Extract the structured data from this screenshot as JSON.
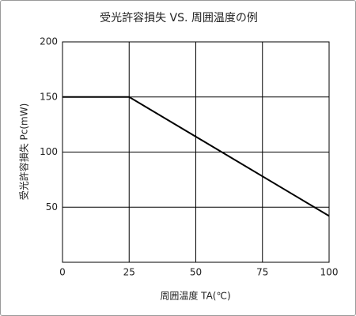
{
  "chart_data": {
    "type": "line",
    "title": "受光許容損失 VS. 周囲温度の例",
    "x_label": "周囲温度 TA(℃)",
    "y_label": "受光許容損失 Pc(mW)",
    "x": [
      0,
      25,
      100
    ],
    "values": [
      150,
      150,
      42
    ],
    "color": "#000000",
    "xlim": [
      0,
      100
    ],
    "xticks": [
      0,
      25,
      50,
      75,
      100
    ],
    "ylim": [
      0,
      200
    ],
    "yticks": [
      50,
      100,
      150,
      200
    ],
    "grid": true
  }
}
